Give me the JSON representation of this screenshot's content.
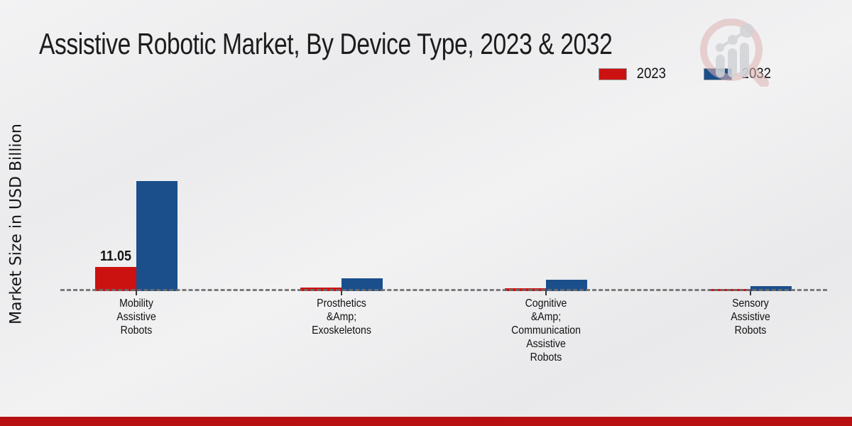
{
  "title": "Assistive Robotic Market, By Device Type, 2023 & 2032",
  "icons": {
    "watermark": "bar-chart-magnifier-logo-icon"
  },
  "colors": {
    "series_2023": "#cc1111",
    "series_2032": "#1a4f8b",
    "footer_band": "#b81010",
    "baseline_dash": "#6e6e6e",
    "background": "#eeeeef",
    "title_text": "#1c1c1c"
  },
  "chart_data": {
    "type": "bar",
    "title": "Assistive Robotic Market, By Device Type, 2023 & 2032",
    "xlabel": "",
    "ylabel": "Market Size in USD Billion",
    "categories": [
      "Mobility Assistive Robots",
      "Prosthetics &Amp; Exoskeletons",
      "Cognitive &Amp; Communication Assistive Robots",
      "Sensory Assistive Robots"
    ],
    "category_label_lines": [
      [
        "Mobility",
        "Assistive",
        "Robots"
      ],
      [
        "Prosthetics",
        "&Amp;",
        "Exoskeletons"
      ],
      [
        "Cognitive",
        "&Amp;",
        "Communication",
        "Assistive",
        "Robots"
      ],
      [
        "Sensory",
        "Assistive",
        "Robots"
      ]
    ],
    "series": [
      {
        "name": "2023",
        "color": "#cc1111",
        "values": [
          11.05,
          1.6,
          1.3,
          0.9
        ]
      },
      {
        "name": "2032",
        "color": "#1a4f8b",
        "values": [
          50.4,
          5.7,
          5.3,
          2.3
        ]
      }
    ],
    "bar_labels": [
      {
        "series": "2023",
        "category_index": 0,
        "text": "11.05"
      }
    ],
    "legend_position": "top-right",
    "y_axis_visible": false,
    "grid": false,
    "baseline_style": "dashed"
  }
}
